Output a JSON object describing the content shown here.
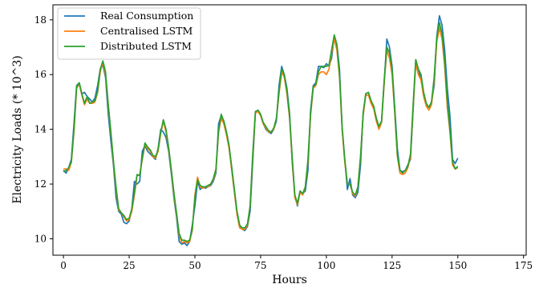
{
  "chart_data": {
    "type": "line",
    "title": "",
    "xlabel": "Hours",
    "ylabel": "Electricity Loads (* 10^3)",
    "xlim": [
      -4,
      176
    ],
    "ylim": [
      9.4,
      18.55
    ],
    "xticks": [
      0,
      25,
      50,
      75,
      100,
      125,
      150,
      175
    ],
    "yticks": [
      10,
      12,
      14,
      16,
      18
    ],
    "grid": false,
    "legend": "top-left",
    "series": [
      {
        "name": "Real Consumption",
        "color": "#1f77b4",
        "values": [
          12.5,
          12.4,
          12.6,
          12.9,
          14.2,
          15.6,
          15.7,
          15.3,
          15.35,
          15.2,
          15.1,
          15.0,
          15.15,
          15.6,
          16.2,
          16.35,
          15.9,
          14.6,
          13.6,
          12.7,
          11.5,
          11.0,
          10.9,
          10.6,
          10.55,
          10.65,
          11.1,
          12.1,
          12.0,
          12.1,
          13.2,
          13.4,
          13.2,
          13.1,
          13.0,
          12.9,
          13.3,
          14.0,
          13.9,
          13.7,
          13.2,
          12.4,
          11.5,
          10.8,
          9.9,
          9.8,
          9.85,
          9.75,
          9.9,
          10.5,
          11.2,
          12.1,
          11.8,
          11.9,
          11.85,
          11.9,
          11.95,
          12.1,
          12.4,
          14.2,
          14.5,
          14.3,
          13.9,
          13.4,
          12.6,
          11.8,
          11.0,
          10.5,
          10.35,
          10.3,
          10.45,
          11.0,
          12.8,
          14.6,
          14.7,
          14.5,
          14.2,
          14.0,
          13.9,
          13.85,
          14.0,
          14.3,
          15.6,
          16.3,
          16.0,
          15.5,
          14.6,
          12.8,
          11.6,
          11.2,
          11.7,
          11.65,
          11.75,
          12.5,
          14.7,
          15.6,
          15.7,
          16.3,
          16.3,
          16.25,
          16.4,
          16.3,
          16.6,
          17.4,
          17.1,
          16.2,
          14.0,
          12.9,
          11.8,
          12.2,
          11.6,
          11.5,
          11.7,
          12.7,
          14.6,
          15.3,
          15.35,
          15.0,
          14.8,
          14.4,
          14.1,
          14.3,
          15.7,
          17.3,
          17.0,
          16.3,
          14.8,
          13.3,
          12.5,
          12.45,
          12.5,
          12.7,
          12.9,
          14.7,
          16.5,
          16.1,
          15.9,
          15.3,
          14.9,
          14.8,
          15.0,
          15.6,
          17.4,
          18.15,
          17.8,
          16.9,
          15.5,
          14.5,
          12.9,
          12.75,
          12.95
        ]
      },
      {
        "name": "Centralised LSTM",
        "color": "#ff7f0e",
        "values": [
          12.55,
          12.55,
          12.5,
          12.8,
          13.9,
          15.5,
          15.65,
          15.25,
          14.9,
          15.1,
          14.95,
          14.95,
          15.0,
          15.35,
          16.1,
          16.45,
          16.0,
          14.9,
          13.9,
          12.8,
          11.8,
          11.05,
          10.95,
          10.8,
          10.65,
          10.7,
          11.0,
          11.6,
          12.3,
          12.35,
          12.9,
          13.45,
          13.3,
          13.2,
          13.0,
          12.95,
          13.2,
          13.85,
          14.3,
          13.9,
          13.3,
          12.5,
          11.6,
          10.9,
          10.15,
          9.85,
          9.9,
          9.85,
          9.9,
          10.3,
          11.6,
          12.25,
          11.9,
          11.85,
          11.9,
          11.9,
          12.0,
          12.15,
          12.5,
          13.9,
          14.4,
          14.2,
          13.8,
          13.3,
          12.5,
          11.7,
          10.9,
          10.4,
          10.35,
          10.35,
          10.5,
          11.2,
          13.0,
          14.6,
          14.65,
          14.5,
          14.2,
          14.05,
          13.9,
          13.9,
          14.0,
          14.4,
          15.3,
          16.1,
          15.9,
          15.3,
          14.4,
          12.9,
          11.5,
          11.25,
          11.7,
          11.6,
          11.9,
          12.8,
          14.5,
          15.5,
          15.6,
          16.0,
          16.1,
          16.1,
          16.0,
          16.2,
          16.8,
          17.3,
          16.9,
          15.9,
          14.0,
          12.8,
          12.0,
          12.0,
          11.65,
          11.55,
          11.9,
          13.0,
          14.5,
          15.25,
          15.25,
          14.95,
          14.75,
          14.3,
          14.0,
          14.25,
          15.7,
          16.9,
          16.6,
          16.0,
          14.6,
          13.0,
          12.4,
          12.35,
          12.4,
          12.6,
          13.0,
          14.8,
          16.4,
          16.0,
          15.8,
          15.2,
          14.85,
          14.7,
          14.9,
          15.8,
          17.2,
          17.7,
          17.3,
          16.3,
          14.8,
          13.9,
          12.7,
          12.55,
          12.6
        ]
      },
      {
        "name": "Distributed LSTM",
        "color": "#2ca02c",
        "values": [
          12.45,
          12.5,
          12.6,
          12.8,
          14.0,
          15.55,
          15.7,
          15.3,
          14.95,
          15.2,
          14.95,
          15.0,
          15.05,
          15.4,
          16.2,
          16.5,
          16.1,
          14.95,
          13.95,
          12.85,
          11.9,
          11.1,
          10.95,
          10.85,
          10.7,
          10.75,
          11.1,
          11.7,
          12.35,
          12.3,
          12.95,
          13.5,
          13.35,
          13.25,
          13.05,
          13.0,
          13.25,
          13.9,
          14.35,
          14.0,
          13.35,
          12.55,
          11.7,
          10.95,
          10.2,
          9.95,
          9.95,
          9.9,
          9.95,
          10.35,
          11.5,
          12.15,
          11.95,
          11.9,
          11.9,
          11.95,
          12.0,
          12.2,
          12.55,
          13.95,
          14.55,
          14.3,
          13.9,
          13.4,
          12.6,
          11.8,
          11.0,
          10.5,
          10.4,
          10.4,
          10.55,
          11.2,
          13.1,
          14.65,
          14.7,
          14.55,
          14.25,
          14.1,
          13.95,
          13.9,
          14.05,
          14.4,
          15.4,
          16.2,
          16.0,
          15.4,
          14.5,
          13.0,
          11.6,
          11.3,
          11.75,
          11.65,
          11.9,
          12.9,
          14.6,
          15.55,
          15.65,
          16.1,
          16.3,
          16.3,
          16.3,
          16.35,
          16.9,
          17.45,
          17.1,
          16.0,
          14.1,
          12.9,
          12.0,
          12.0,
          11.7,
          11.6,
          11.9,
          13.0,
          14.6,
          15.3,
          15.35,
          15.05,
          14.85,
          14.4,
          14.1,
          14.3,
          15.8,
          17.0,
          16.8,
          16.2,
          14.7,
          13.1,
          12.5,
          12.4,
          12.5,
          12.65,
          13.1,
          14.9,
          16.55,
          16.2,
          16.0,
          15.35,
          14.95,
          14.8,
          15.0,
          15.9,
          17.35,
          17.9,
          17.5,
          16.5,
          15.0,
          14.0,
          12.8,
          12.55,
          12.65
        ]
      }
    ]
  }
}
